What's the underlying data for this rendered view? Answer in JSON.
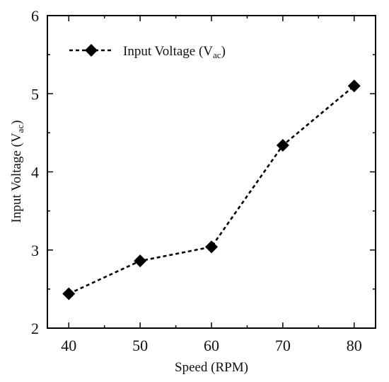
{
  "chart_data": {
    "type": "line",
    "title": "",
    "xlabel": "Speed (RPM)",
    "ylabel": {
      "main": "Input Voltage (V",
      "sub": "ac",
      "close": ")"
    },
    "xlim": [
      37,
      83
    ],
    "ylim": [
      2,
      6
    ],
    "x_ticks": [
      40,
      50,
      60,
      70,
      80
    ],
    "y_ticks": [
      2,
      3,
      4,
      5,
      6
    ],
    "grid": false,
    "legend_position": "top-left",
    "series": [
      {
        "name": {
          "main": "Input Voltage (V",
          "sub": "ac",
          "close": ")"
        },
        "line_style": "dashed",
        "marker": "diamond",
        "color": "#000000",
        "x": [
          40,
          50,
          60,
          70,
          80
        ],
        "y": [
          2.44,
          2.86,
          3.04,
          4.34,
          5.1
        ]
      }
    ]
  }
}
